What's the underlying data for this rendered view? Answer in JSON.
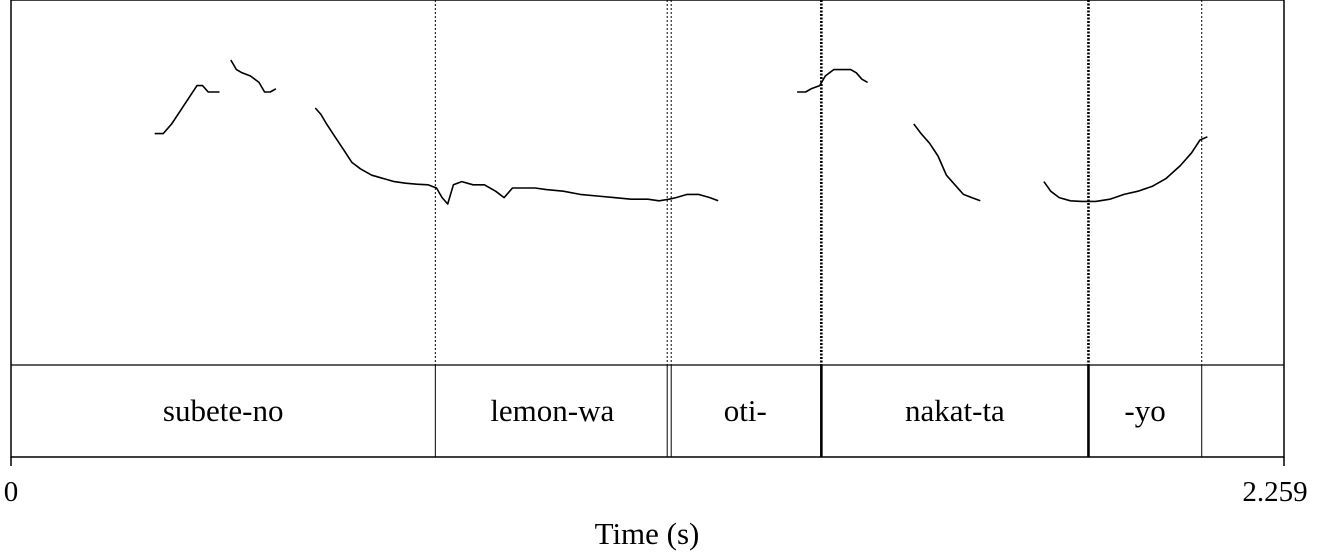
{
  "chart_data": {
    "type": "line",
    "title": "",
    "xlabel": "Time (s)",
    "ylabel": "",
    "xlim": [
      0,
      2.259
    ],
    "x_tick_labels": [
      "0",
      "2.259"
    ],
    "grid": false,
    "pitch_track_color": "#000000",
    "tiers": [
      {
        "intervals": [
          {
            "label": "subete-no",
            "start": 0.0,
            "end": 0.753
          },
          {
            "label": "lemon-wa",
            "start": 0.753,
            "end": 1.168
          },
          {
            "label": "oti-",
            "start": 1.168,
            "end": 1.438
          },
          {
            "label": "nakat-ta",
            "start": 1.438,
            "end": 1.912
          },
          {
            "label": "-yo",
            "start": 1.912,
            "end": 2.113
          },
          {
            "label": "",
            "start": 2.113,
            "end": 2.259
          }
        ]
      }
    ],
    "boundaries": [
      {
        "t": 0.753,
        "style": "thin"
      },
      {
        "t": 1.168,
        "style": "double"
      },
      {
        "t": 1.438,
        "style": "thick"
      },
      {
        "t": 1.912,
        "style": "thick"
      },
      {
        "t": 2.113,
        "style": "thin"
      }
    ],
    "pitch_ylim": [
      0,
      100
    ],
    "pitch_segments": [
      [
        [
          0.255,
          77
        ],
        [
          0.27,
          77
        ],
        [
          0.285,
          80
        ],
        [
          0.3,
          84
        ],
        [
          0.315,
          88
        ],
        [
          0.33,
          92
        ],
        [
          0.34,
          92
        ],
        [
          0.35,
          90
        ],
        [
          0.36,
          90
        ],
        [
          0.37,
          90
        ]
      ],
      [
        [
          0.39,
          100
        ],
        [
          0.4,
          97
        ],
        [
          0.41,
          96
        ],
        [
          0.425,
          95
        ],
        [
          0.44,
          93
        ],
        [
          0.45,
          90
        ],
        [
          0.46,
          90
        ],
        [
          0.47,
          91
        ]
      ],
      [
        [
          0.54,
          85
        ],
        [
          0.55,
          83
        ],
        [
          0.56,
          80
        ],
        [
          0.575,
          76
        ],
        [
          0.59,
          72
        ],
        [
          0.605,
          68
        ],
        [
          0.62,
          66
        ],
        [
          0.64,
          64
        ],
        [
          0.66,
          63
        ],
        [
          0.68,
          62
        ],
        [
          0.7,
          61.5
        ],
        [
          0.72,
          61.2
        ],
        [
          0.74,
          61
        ],
        [
          0.755,
          60
        ],
        [
          0.765,
          57
        ],
        [
          0.775,
          55
        ],
        [
          0.785,
          61
        ],
        [
          0.8,
          62
        ],
        [
          0.82,
          61
        ],
        [
          0.84,
          61
        ],
        [
          0.86,
          59
        ],
        [
          0.875,
          57
        ],
        [
          0.89,
          60
        ],
        [
          0.91,
          60
        ],
        [
          0.93,
          60
        ],
        [
          0.95,
          59.5
        ],
        [
          0.98,
          59
        ],
        [
          1.01,
          58
        ],
        [
          1.04,
          57.5
        ],
        [
          1.07,
          57
        ],
        [
          1.1,
          56.5
        ],
        [
          1.13,
          56.5
        ],
        [
          1.15,
          56
        ],
        [
          1.168,
          56.5
        ],
        [
          1.18,
          57
        ],
        [
          1.2,
          58
        ],
        [
          1.22,
          58
        ],
        [
          1.24,
          57
        ],
        [
          1.255,
          56
        ]
      ],
      [
        [
          1.395,
          90
        ],
        [
          1.41,
          90
        ],
        [
          1.42,
          91
        ],
        [
          1.435,
          92
        ],
        [
          1.445,
          95
        ],
        [
          1.46,
          97
        ],
        [
          1.475,
          97
        ],
        [
          1.49,
          97
        ],
        [
          1.5,
          96
        ],
        [
          1.51,
          94
        ],
        [
          1.52,
          93
        ]
      ],
      [
        [
          1.602,
          80
        ],
        [
          1.615,
          77
        ],
        [
          1.63,
          74
        ],
        [
          1.645,
          70
        ],
        [
          1.66,
          64
        ],
        [
          1.675,
          61
        ],
        [
          1.69,
          58
        ],
        [
          1.705,
          57
        ],
        [
          1.72,
          56
        ]
      ],
      [
        [
          1.833,
          62
        ],
        [
          1.845,
          59
        ],
        [
          1.86,
          57
        ],
        [
          1.88,
          56
        ],
        [
          1.9,
          55.8
        ],
        [
          1.925,
          55.8
        ],
        [
          1.95,
          56.5
        ],
        [
          1.975,
          58
        ],
        [
          2.0,
          59
        ],
        [
          2.025,
          60.5
        ],
        [
          2.05,
          63
        ],
        [
          2.075,
          67
        ],
        [
          2.095,
          71
        ],
        [
          2.11,
          75
        ],
        [
          2.123,
          76
        ]
      ]
    ]
  }
}
